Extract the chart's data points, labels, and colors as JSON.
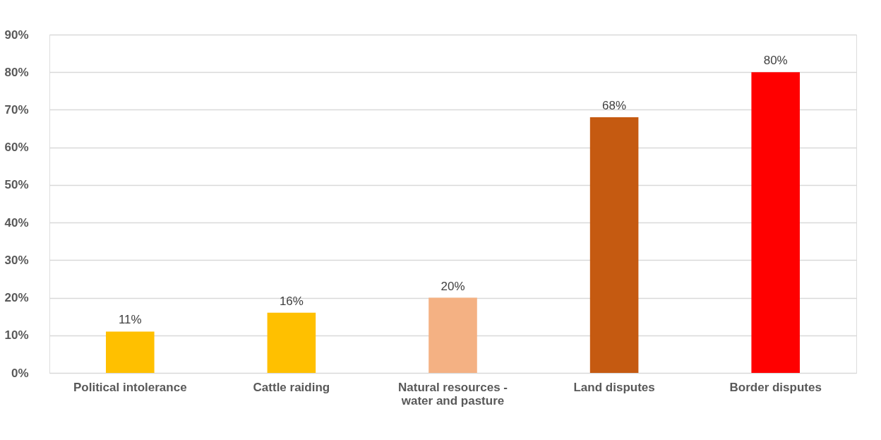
{
  "chart_data": {
    "type": "bar",
    "categories": [
      "Political intolerance",
      "Cattle raiding",
      "Natural resources - water and pasture",
      "Land disputes",
      "Border disputes"
    ],
    "values": [
      11,
      16,
      20,
      68,
      80
    ],
    "colors": [
      "#ffc000",
      "#ffc000",
      "#f4b183",
      "#c55a11",
      "#ff0000"
    ],
    "value_labels": [
      "11%",
      "16%",
      "20%",
      "68%",
      "80%"
    ],
    "ylim": [
      0,
      90
    ],
    "yticks": [
      {
        "value": 0,
        "label": "0%"
      },
      {
        "value": 10,
        "label": "10%"
      },
      {
        "value": 20,
        "label": "20%"
      },
      {
        "value": 30,
        "label": "30%"
      },
      {
        "value": 40,
        "label": "40%"
      },
      {
        "value": 50,
        "label": "50%"
      },
      {
        "value": 60,
        "label": "60%"
      },
      {
        "value": 70,
        "label": "70%"
      },
      {
        "value": 80,
        "label": "80%"
      },
      {
        "value": 90,
        "label": "90%"
      }
    ],
    "grid": "y"
  }
}
